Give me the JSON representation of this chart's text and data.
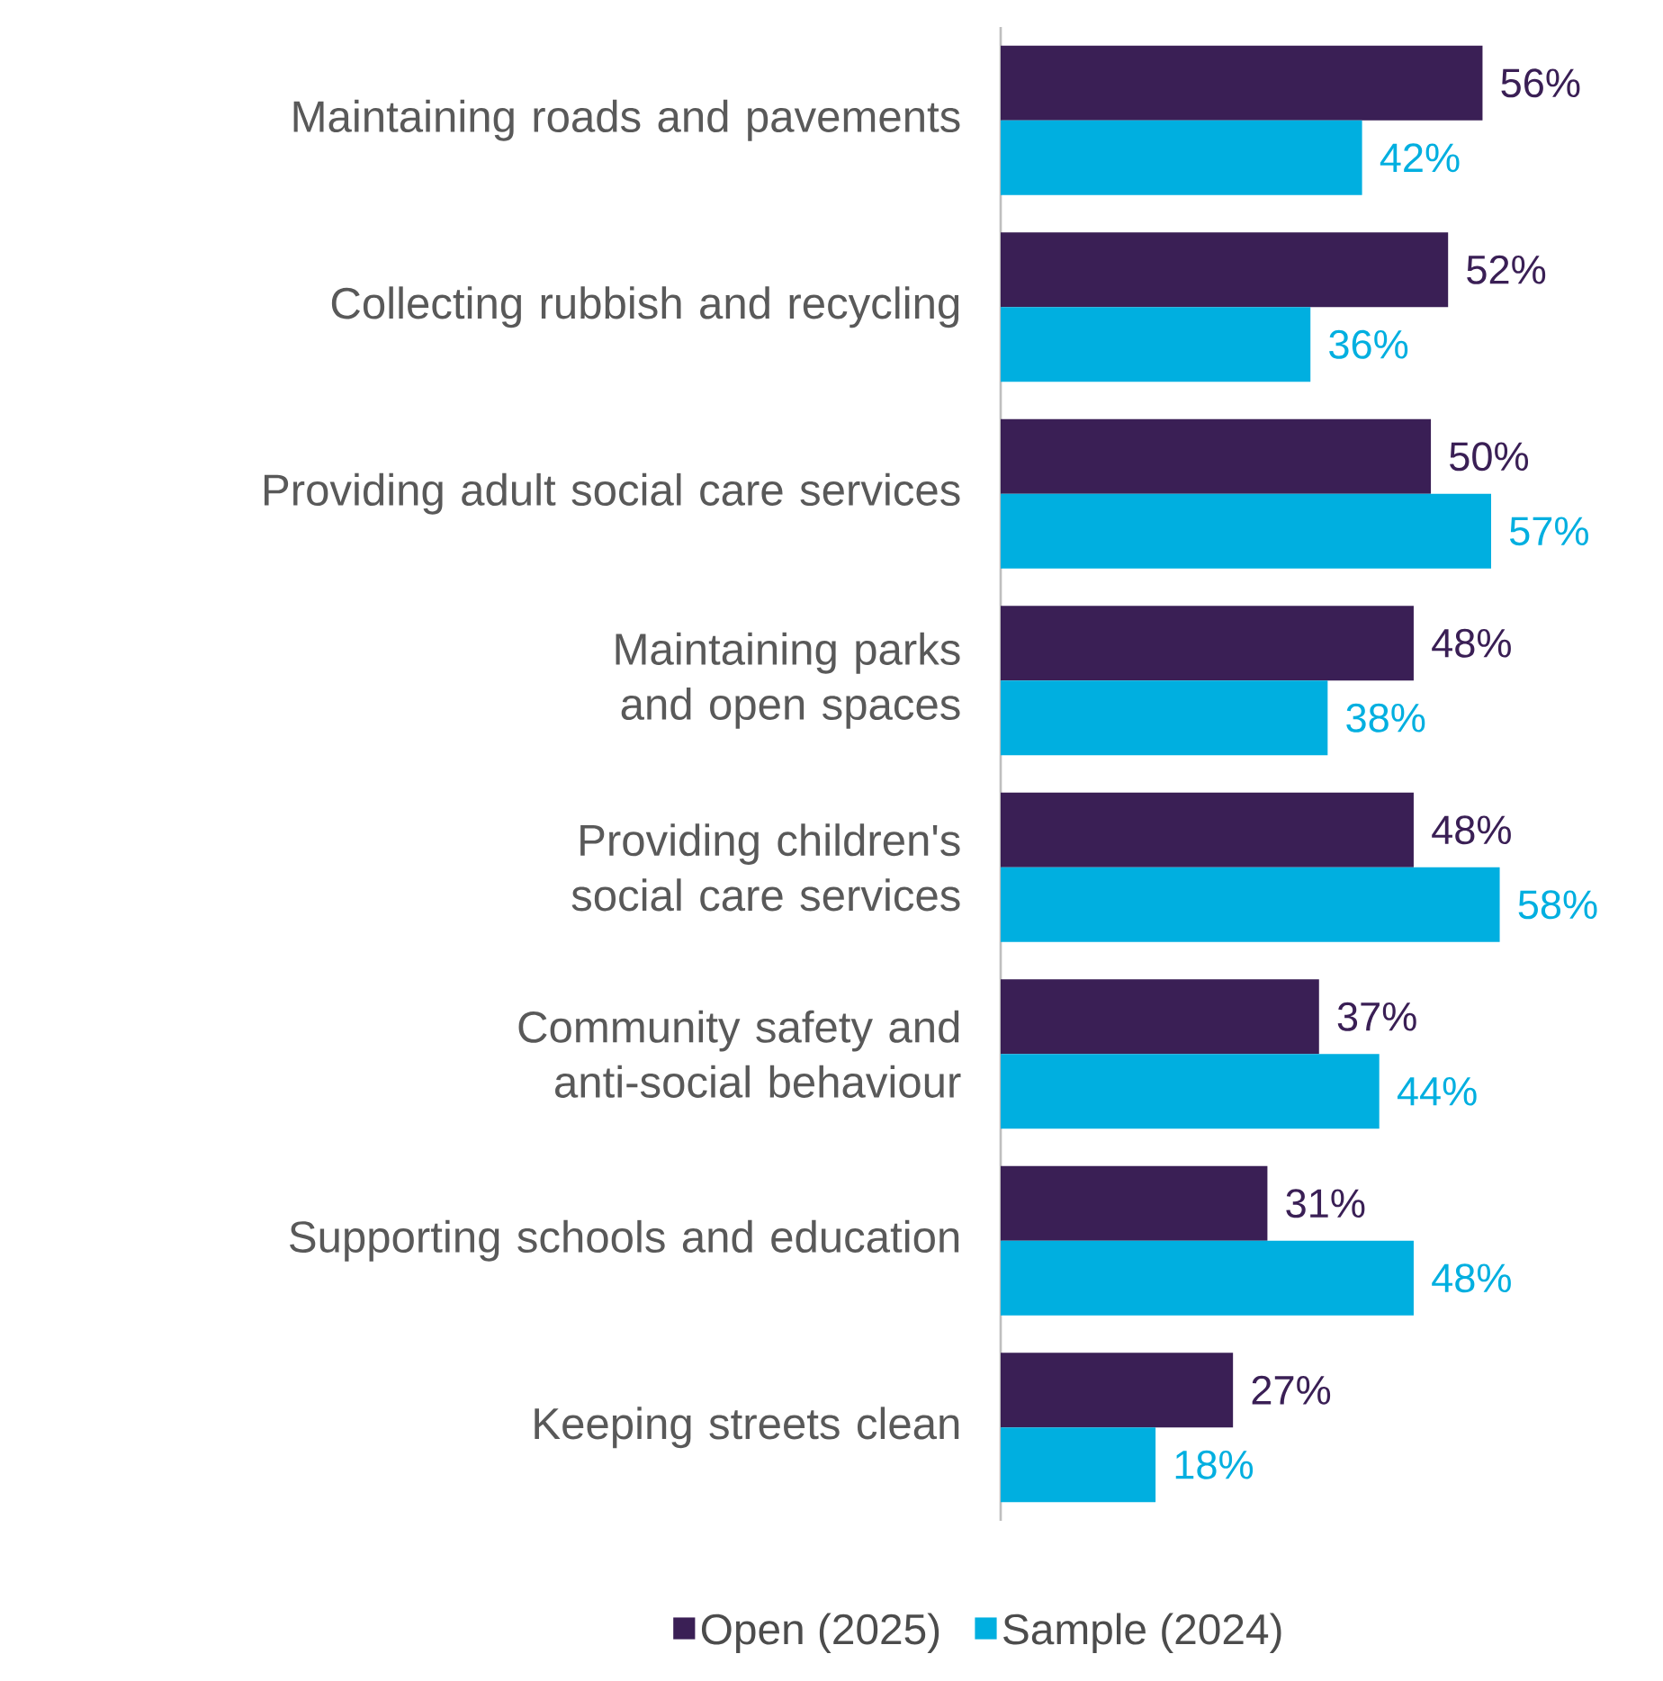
{
  "chart_data": {
    "type": "bar",
    "orientation": "horizontal",
    "categories": [
      "Maintaining roads and pavements",
      "Collecting rubbish and recycling",
      "Providing adult social care services",
      "Maintaining parks and open spaces",
      "Providing children's social care services",
      "Community safety and anti-social behaviour",
      "Supporting schools and education",
      "Keeping streets clean"
    ],
    "series": [
      {
        "name": "Open (2025)",
        "color": "#3a1f55",
        "values": [
          56,
          52,
          50,
          48,
          48,
          37,
          31,
          27
        ],
        "value_labels": [
          "56%",
          "52%",
          "50%",
          "48%",
          "48%",
          "37%",
          "31%",
          "27%"
        ]
      },
      {
        "name": "Sample (2024)",
        "color": "#00afe0",
        "values": [
          42,
          36,
          57,
          38,
          58,
          44,
          48,
          18
        ],
        "value_labels": [
          "42%",
          "36%",
          "57%",
          "38%",
          "58%",
          "44%",
          "48%",
          "18%"
        ]
      }
    ],
    "legend": "bottom"
  }
}
